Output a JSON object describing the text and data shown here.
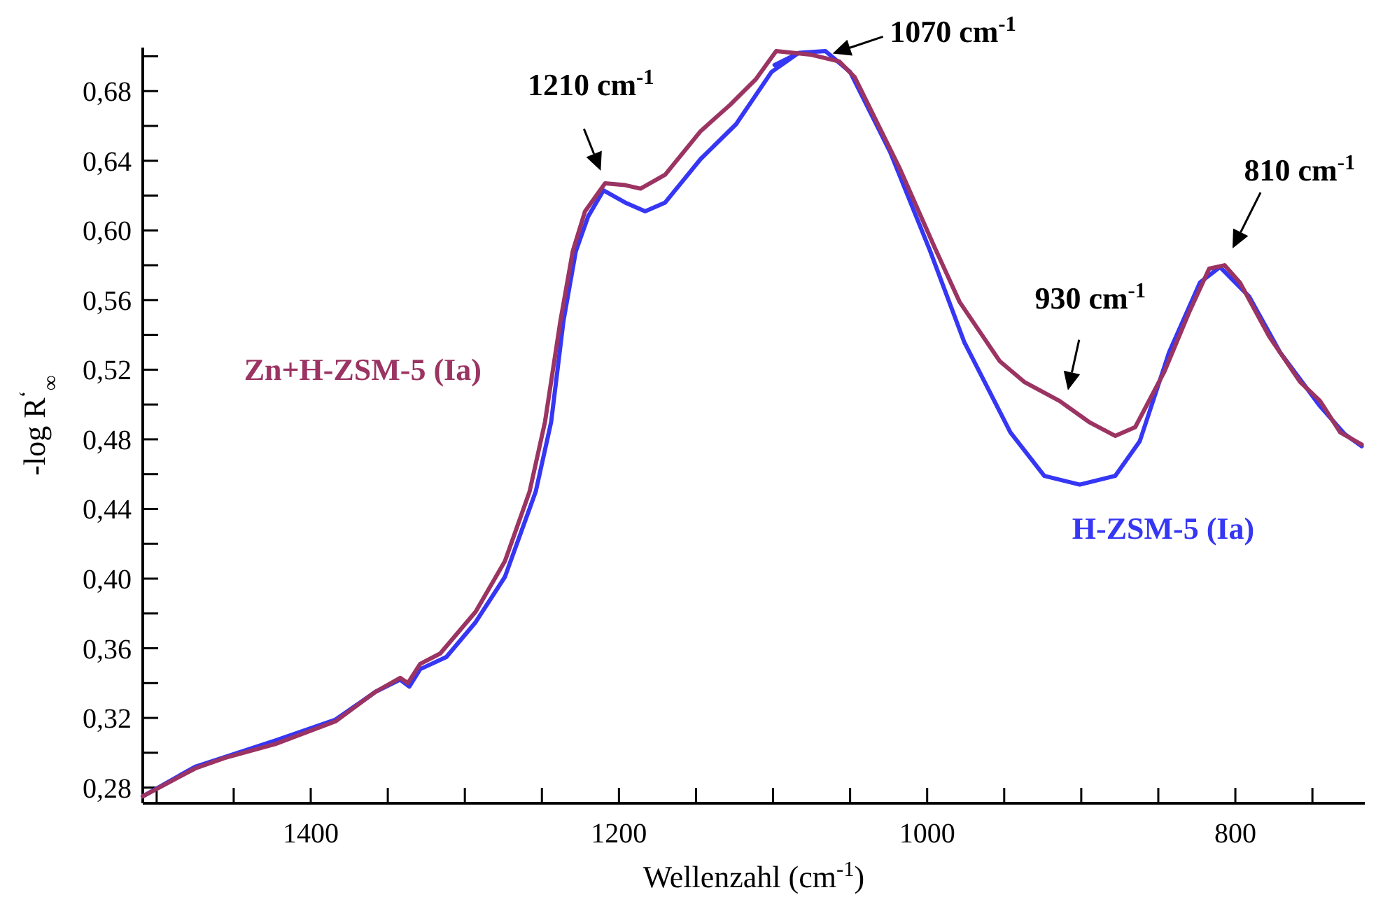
{
  "chart_data": {
    "type": "line",
    "xlabel": "Wellenzahl (cm$^{-1}$)",
    "ylabel": "-log R$^{‘}$$_{∞}$",
    "xlim": [
      1509,
      716
    ],
    "ylim": [
      0.271,
      0.705
    ],
    "xticks": [
      {
        "value": 1500,
        "label": null
      },
      {
        "value": 1450,
        "label": null
      },
      1400,
      {
        "value": 1350,
        "label": null
      },
      {
        "value": 1300,
        "label": null
      },
      {
        "value": 1250,
        "label": null
      },
      1200,
      {
        "value": 1150,
        "label": null
      },
      {
        "value": 1100,
        "label": null
      },
      {
        "value": 1050,
        "label": null
      },
      1000,
      {
        "value": 950,
        "label": null
      },
      {
        "value": 900,
        "label": null
      },
      {
        "value": 850,
        "label": null
      },
      800,
      {
        "value": 750,
        "label": null
      }
    ],
    "yticks": [
      {
        "value": 0.28,
        "label": "0,28"
      },
      {
        "value": 0.3,
        "label": null
      },
      {
        "value": 0.32,
        "label": "0,32"
      },
      {
        "value": 0.34,
        "label": null
      },
      {
        "value": 0.36,
        "label": "0,36"
      },
      {
        "value": 0.38,
        "label": null
      },
      {
        "value": 0.4,
        "label": "0,40"
      },
      {
        "value": 0.42,
        "label": null
      },
      {
        "value": 0.44,
        "label": "0,44"
      },
      {
        "value": 0.46,
        "label": null
      },
      {
        "value": 0.48,
        "label": "0,48"
      },
      {
        "value": 0.5,
        "label": null
      },
      {
        "value": 0.52,
        "label": "0,52"
      },
      {
        "value": 0.54,
        "label": null
      },
      {
        "value": 0.56,
        "label": "0,56"
      },
      {
        "value": 0.58,
        "label": null
      },
      {
        "value": 0.6,
        "label": "0,60"
      },
      {
        "value": 0.62,
        "label": null
      },
      {
        "value": 0.64,
        "label": "0,64"
      },
      {
        "value": 0.66,
        "label": null
      },
      {
        "value": 0.68,
        "label": "0,68"
      },
      {
        "value": 0.7,
        "label": null
      }
    ],
    "grid": false,
    "marker": "none",
    "line_style": "solid",
    "series": [
      {
        "name": "H-ZSM-5 (Ia)",
        "color": "#3636f5",
        "x": [
          1509,
          1475,
          1423,
          1384,
          1358,
          1342,
          1336,
          1329,
          1312,
          1293,
          1274,
          1254,
          1244,
          1236,
          1228,
          1220,
          1210,
          1196,
          1183,
          1170,
          1147,
          1124,
          1101,
          1085,
          1099,
          1083,
          1066,
          1050,
          1024,
          998,
          976,
          946,
          924,
          901,
          878,
          862,
          843,
          823,
          810,
          791,
          771,
          745,
          729,
          718
        ],
        "values": [
          0.275,
          0.292,
          0.307,
          0.319,
          0.335,
          0.342,
          0.338,
          0.348,
          0.355,
          0.375,
          0.401,
          0.45,
          0.49,
          0.548,
          0.588,
          0.608,
          0.623,
          0.616,
          0.611,
          0.616,
          0.641,
          0.661,
          0.691,
          0.701,
          0.695,
          0.702,
          0.703,
          0.691,
          0.645,
          0.588,
          0.536,
          0.484,
          0.459,
          0.454,
          0.459,
          0.479,
          0.53,
          0.57,
          0.579,
          0.562,
          0.53,
          0.499,
          0.483,
          0.476
        ]
      },
      {
        "name": "Zn+H-ZSM-5 (Ia)",
        "color": "#9b3462",
        "x": [
          1509,
          1475,
          1456,
          1423,
          1384,
          1358,
          1342,
          1337,
          1329,
          1316,
          1293,
          1274,
          1258,
          1248,
          1238,
          1230,
          1222,
          1209,
          1196,
          1186,
          1170,
          1147,
          1128,
          1111,
          1098,
          1076,
          1057,
          1047,
          1018,
          995,
          979,
          953,
          937,
          914,
          895,
          878,
          865,
          846,
          830,
          817,
          807,
          797,
          778,
          758,
          745,
          732,
          718
        ],
        "values": [
          0.275,
          0.291,
          0.297,
          0.305,
          0.318,
          0.335,
          0.343,
          0.34,
          0.351,
          0.357,
          0.381,
          0.41,
          0.45,
          0.49,
          0.548,
          0.588,
          0.611,
          0.627,
          0.626,
          0.624,
          0.632,
          0.657,
          0.672,
          0.687,
          0.703,
          0.701,
          0.697,
          0.688,
          0.636,
          0.59,
          0.559,
          0.525,
          0.513,
          0.502,
          0.49,
          0.482,
          0.487,
          0.519,
          0.553,
          0.578,
          0.58,
          0.57,
          0.539,
          0.513,
          0.502,
          0.484,
          0.477
        ]
      }
    ],
    "annotations": [
      {
        "text": "1210 cm$^{-1}$",
        "x": 1210,
        "y": 0.627
      },
      {
        "text": "1070 cm$^{-1}$",
        "x": 1065,
        "y": 0.7
      },
      {
        "text": "930 cm$^{-1}$",
        "x": 925,
        "y": 0.505
      },
      {
        "text": "810 cm$^{-1}$",
        "x": 810,
        "y": 0.58
      }
    ]
  }
}
